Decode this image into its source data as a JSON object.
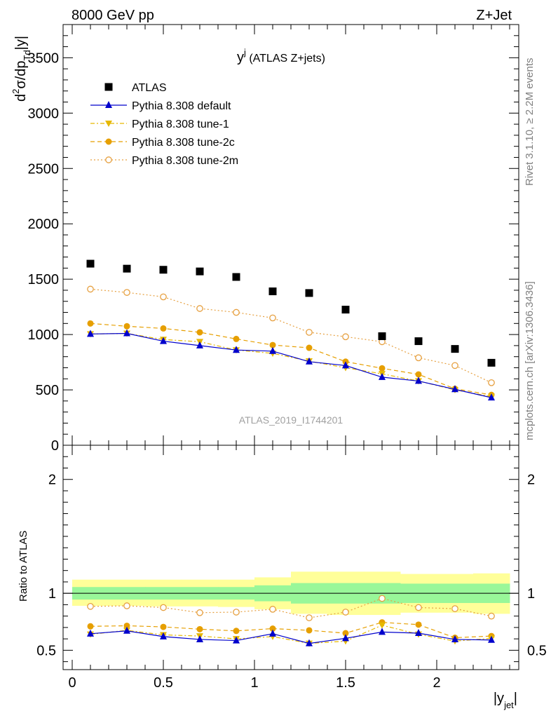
{
  "header": {
    "left": "8000 GeV pp",
    "right": "Z+Jet"
  },
  "side_labels": {
    "rivet": "Rivet 3.1.10, ≥ 2.2M events",
    "mcplots": "mcplots.cern.ch [arXiv:1306.3436]"
  },
  "chart_data": {
    "type": "scatter",
    "title_main": "y",
    "title_sup": "j",
    "title_rest": " (ATLAS Z+jets)",
    "analysis_label": "ATLAS_2019_I1744201",
    "ylabel_parts": [
      "d",
      "2",
      "σ/dp",
      "Td",
      "|y|"
    ],
    "xlabel_main": "|y",
    "xlabel_sub": "jet",
    "xlabel_end": "|",
    "ratio_ylabel": "Ratio to ATLAS",
    "x": [
      0.1,
      0.3,
      0.5,
      0.7,
      0.9,
      1.1,
      1.3,
      1.5,
      1.7,
      1.9,
      2.1,
      2.3
    ],
    "bin_edges": [
      0.0,
      0.2,
      0.4,
      0.6,
      0.8,
      1.0,
      1.2,
      1.4,
      1.6,
      1.8,
      2.0,
      2.2,
      2.4
    ],
    "main_ylim": [
      0,
      3800
    ],
    "main_yticks": [
      "0",
      "500",
      "1000",
      "1500",
      "2000",
      "2500",
      "3000",
      "3500"
    ],
    "ratio_ylim": [
      0.33,
      2.3
    ],
    "ratio_yticks": [
      "0.5",
      "1",
      "2"
    ],
    "xlim": [
      -0.05,
      2.45
    ],
    "xticks": [
      "0",
      "0.5",
      "1",
      "1.5",
      "2"
    ],
    "colors": {
      "atlas": "#000000",
      "default": "#0000cc",
      "tune1": "#e6b800",
      "tune2c": "#e69f00",
      "tune2m": "#e6a040",
      "band_inner": "#99f799",
      "band_outer": "#ffff99"
    },
    "series": [
      {
        "name": "ATLAS",
        "key": "atlas",
        "marker": "square",
        "line": "none",
        "values": [
          1640,
          1595,
          1585,
          1570,
          1520,
          1390,
          1375,
          1225,
          985,
          940,
          870,
          745
        ]
      },
      {
        "name": "Pythia 8.308 default",
        "key": "default",
        "marker": "triangle-up",
        "line": "solid",
        "values": [
          1005,
          1010,
          940,
          900,
          860,
          850,
          755,
          720,
          615,
          580,
          505,
          430
        ]
      },
      {
        "name": "Pythia 8.308 tune-1",
        "key": "tune1",
        "marker": "triangle-down",
        "line": "dashdot",
        "values": [
          1005,
          1010,
          955,
          935,
          860,
          830,
          760,
          700,
          645,
          580,
          500,
          440
        ]
      },
      {
        "name": "Pythia 8.308 tune-2c",
        "key": "tune2c",
        "marker": "circle",
        "line": "dashed",
        "values": [
          1100,
          1075,
          1055,
          1020,
          960,
          905,
          880,
          755,
          695,
          640,
          510,
          455
        ]
      },
      {
        "name": "Pythia 8.308 tune-2m",
        "key": "tune2m",
        "marker": "circle-open",
        "line": "dotted",
        "values": [
          1410,
          1380,
          1340,
          1235,
          1200,
          1150,
          1020,
          980,
          935,
          790,
          720,
          565
        ]
      }
    ],
    "ratio_series": [
      {
        "key": "default",
        "values": [
          0.645,
          0.67,
          0.62,
          0.595,
          0.585,
          0.645,
          0.56,
          0.605,
          0.66,
          0.65,
          0.595,
          0.59
        ]
      },
      {
        "key": "tune1",
        "values": [
          0.64,
          0.675,
          0.635,
          0.625,
          0.6,
          0.62,
          0.56,
          0.58,
          0.72,
          0.64,
          0.58,
          0.605
        ]
      },
      {
        "key": "tune2c",
        "values": [
          0.71,
          0.715,
          0.705,
          0.685,
          0.67,
          0.69,
          0.675,
          0.65,
          0.745,
          0.725,
          0.61,
          0.625
        ]
      },
      {
        "key": "tune2m",
        "values": [
          0.885,
          0.89,
          0.875,
          0.83,
          0.835,
          0.86,
          0.785,
          0.835,
          0.955,
          0.875,
          0.865,
          0.8
        ]
      }
    ],
    "band_inner": [
      [
        0.945,
        1.055
      ],
      [
        0.945,
        1.055
      ],
      [
        0.945,
        1.055
      ],
      [
        0.945,
        1.055
      ],
      [
        0.945,
        1.055
      ],
      [
        0.93,
        1.07
      ],
      [
        0.91,
        1.09
      ],
      [
        0.91,
        1.09
      ],
      [
        0.91,
        1.09
      ],
      [
        0.915,
        1.085
      ],
      [
        0.915,
        1.085
      ],
      [
        0.915,
        1.085
      ]
    ],
    "band_outer": [
      [
        0.89,
        1.12
      ],
      [
        0.89,
        1.12
      ],
      [
        0.885,
        1.12
      ],
      [
        0.885,
        1.12
      ],
      [
        0.88,
        1.12
      ],
      [
        0.86,
        1.14
      ],
      [
        0.82,
        1.19
      ],
      [
        0.81,
        1.19
      ],
      [
        0.81,
        1.19
      ],
      [
        0.83,
        1.17
      ],
      [
        0.83,
        1.17
      ],
      [
        0.82,
        1.175
      ]
    ]
  }
}
